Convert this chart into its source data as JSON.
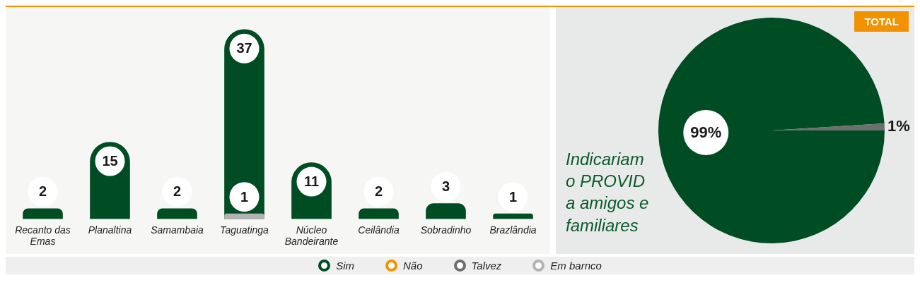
{
  "chart_data": [
    {
      "type": "bar",
      "categories": [
        "Recanto das Emas",
        "Planaltina",
        "Samambaia",
        "Taguatinga",
        "Núcleo Bandeirante",
        "Ceilândia",
        "Sobradinho",
        "Brazlândia"
      ],
      "series": [
        {
          "name": "Sim",
          "color": "#004d23",
          "values": [
            2,
            15,
            2,
            37,
            11,
            2,
            3,
            1
          ]
        },
        {
          "name": "Não",
          "color": "#f39200",
          "values": [
            null,
            null,
            null,
            null,
            null,
            null,
            null,
            null
          ]
        },
        {
          "name": "Talvez",
          "color": "#6d6e70",
          "values": [
            null,
            null,
            null,
            null,
            null,
            null,
            null,
            null
          ]
        },
        {
          "name": "Em barnco",
          "color": "#b3b3b3",
          "values": [
            null,
            null,
            null,
            1,
            null,
            null,
            null,
            null
          ]
        }
      ],
      "data_labels": true,
      "legend": "bottom",
      "grid": false
    },
    {
      "type": "pie",
      "title": "TOTAL",
      "categories": [
        null,
        null
      ],
      "values": [
        99,
        1
      ],
      "colors": [
        "#004d23",
        "#6d6e70"
      ],
      "value_labels": [
        "99%",
        "1%"
      ],
      "annotations": [
        "Indicariam o PROVID a amigos e familiares"
      ]
    }
  ]
}
